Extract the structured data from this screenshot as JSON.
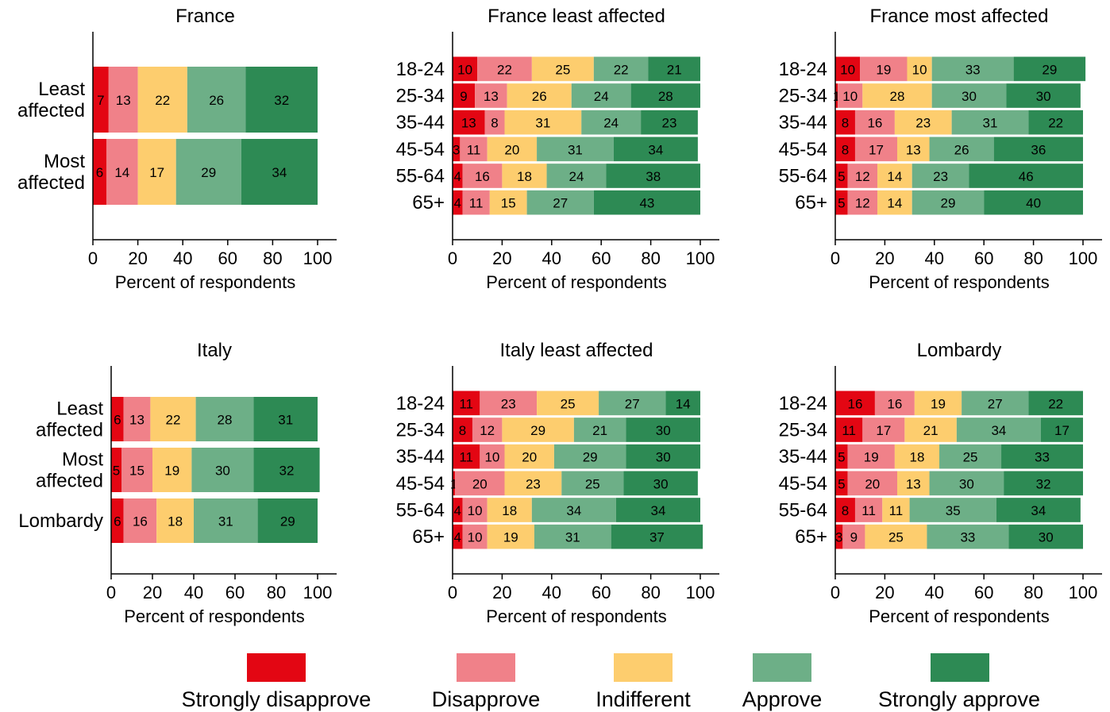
{
  "chart_data": [
    {
      "type": "bar",
      "title": "France",
      "xlabel": "Percent of respondents",
      "xlim": [
        0,
        100
      ],
      "xticks": [
        0,
        20,
        40,
        60,
        80,
        100
      ],
      "categories": [
        [
          "Least",
          "affected"
        ],
        [
          "Most",
          "affected"
        ]
      ],
      "series": [
        {
          "name": "Strongly disapprove",
          "values": [
            7,
            6
          ]
        },
        {
          "name": "Disapprove",
          "values": [
            13,
            14
          ]
        },
        {
          "name": "Indifferent",
          "values": [
            22,
            17
          ]
        },
        {
          "name": "Approve",
          "values": [
            26,
            29
          ]
        },
        {
          "name": "Strongly approve",
          "values": [
            32,
            34
          ]
        }
      ]
    },
    {
      "type": "bar",
      "title": "France least affected",
      "xlabel": "Percent of respondents",
      "xlim": [
        0,
        100
      ],
      "xticks": [
        0,
        20,
        40,
        60,
        80,
        100
      ],
      "categories": [
        [
          "18-24"
        ],
        [
          "25-34"
        ],
        [
          "35-44"
        ],
        [
          "45-54"
        ],
        [
          "55-64"
        ],
        [
          "65+"
        ]
      ],
      "series": [
        {
          "name": "Strongly disapprove",
          "values": [
            10,
            9,
            13,
            3,
            4,
            4
          ]
        },
        {
          "name": "Disapprove",
          "values": [
            22,
            13,
            8,
            11,
            16,
            11
          ]
        },
        {
          "name": "Indifferent",
          "values": [
            25,
            26,
            31,
            20,
            18,
            15
          ]
        },
        {
          "name": "Approve",
          "values": [
            22,
            24,
            24,
            31,
            24,
            27
          ]
        },
        {
          "name": "Strongly approve",
          "values": [
            21,
            28,
            23,
            34,
            38,
            43
          ]
        }
      ]
    },
    {
      "type": "bar",
      "title": "France most affected",
      "xlabel": "Percent of respondents",
      "xlim": [
        0,
        100
      ],
      "xticks": [
        0,
        20,
        40,
        60,
        80,
        100
      ],
      "categories": [
        [
          "18-24"
        ],
        [
          "25-34"
        ],
        [
          "35-44"
        ],
        [
          "45-54"
        ],
        [
          "55-64"
        ],
        [
          "65+"
        ]
      ],
      "series": [
        {
          "name": "Strongly disapprove",
          "values": [
            10,
            1,
            8,
            8,
            5,
            5
          ]
        },
        {
          "name": "Disapprove",
          "values": [
            19,
            10,
            16,
            17,
            12,
            12
          ]
        },
        {
          "name": "Indifferent",
          "values": [
            10,
            28,
            23,
            13,
            14,
            14
          ]
        },
        {
          "name": "Approve",
          "values": [
            33,
            30,
            31,
            26,
            23,
            29
          ]
        },
        {
          "name": "Strongly approve",
          "values": [
            29,
            30,
            22,
            36,
            46,
            40
          ]
        }
      ]
    },
    {
      "type": "bar",
      "title": "Italy",
      "xlabel": "Percent of respondents",
      "xlim": [
        0,
        100
      ],
      "xticks": [
        0,
        20,
        40,
        60,
        80,
        100
      ],
      "categories": [
        [
          "Least",
          "affected"
        ],
        [
          "Most",
          "affected"
        ],
        [
          "Lombardy"
        ]
      ],
      "series": [
        {
          "name": "Strongly disapprove",
          "values": [
            6,
            5,
            6
          ]
        },
        {
          "name": "Disapprove",
          "values": [
            13,
            15,
            16
          ]
        },
        {
          "name": "Indifferent",
          "values": [
            22,
            19,
            18
          ]
        },
        {
          "name": "Approve",
          "values": [
            28,
            30,
            31
          ]
        },
        {
          "name": "Strongly approve",
          "values": [
            31,
            32,
            29
          ]
        }
      ]
    },
    {
      "type": "bar",
      "title": "Italy least affected",
      "xlabel": "Percent of respondents",
      "xlim": [
        0,
        100
      ],
      "xticks": [
        0,
        20,
        40,
        60,
        80,
        100
      ],
      "categories": [
        [
          "18-24"
        ],
        [
          "25-34"
        ],
        [
          "35-44"
        ],
        [
          "45-54"
        ],
        [
          "55-64"
        ],
        [
          "65+"
        ]
      ],
      "series": [
        {
          "name": "Strongly disapprove",
          "values": [
            11,
            8,
            11,
            1,
            4,
            4
          ]
        },
        {
          "name": "Disapprove",
          "values": [
            23,
            12,
            10,
            20,
            10,
            10
          ]
        },
        {
          "name": "Indifferent",
          "values": [
            25,
            29,
            20,
            23,
            18,
            19
          ]
        },
        {
          "name": "Approve",
          "values": [
            27,
            21,
            29,
            25,
            34,
            31
          ]
        },
        {
          "name": "Strongly approve",
          "values": [
            14,
            30,
            30,
            30,
            34,
            37
          ]
        }
      ]
    },
    {
      "type": "bar",
      "title": "Lombardy",
      "xlabel": "Percent of respondents",
      "xlim": [
        0,
        100
      ],
      "xticks": [
        0,
        20,
        40,
        60,
        80,
        100
      ],
      "categories": [
        [
          "18-24"
        ],
        [
          "25-34"
        ],
        [
          "35-44"
        ],
        [
          "45-54"
        ],
        [
          "55-64"
        ],
        [
          "65+"
        ]
      ],
      "series": [
        {
          "name": "Strongly disapprove",
          "values": [
            16,
            11,
            5,
            5,
            8,
            3
          ]
        },
        {
          "name": "Disapprove",
          "values": [
            16,
            17,
            19,
            20,
            11,
            9
          ]
        },
        {
          "name": "Indifferent",
          "values": [
            19,
            21,
            18,
            13,
            11,
            25
          ]
        },
        {
          "name": "Approve",
          "values": [
            27,
            34,
            25,
            30,
            35,
            33
          ]
        },
        {
          "name": "Strongly approve",
          "values": [
            22,
            17,
            33,
            32,
            34,
            30
          ]
        }
      ]
    }
  ],
  "legend": [
    {
      "label": "Strongly disapprove",
      "color": "#e30613"
    },
    {
      "label": "Disapprove",
      "color": "#f08189"
    },
    {
      "label": "Indifferent",
      "color": "#fdcd6e"
    },
    {
      "label": "Approve",
      "color": "#6daf87"
    },
    {
      "label": "Strongly approve",
      "color": "#2d8a54"
    }
  ]
}
